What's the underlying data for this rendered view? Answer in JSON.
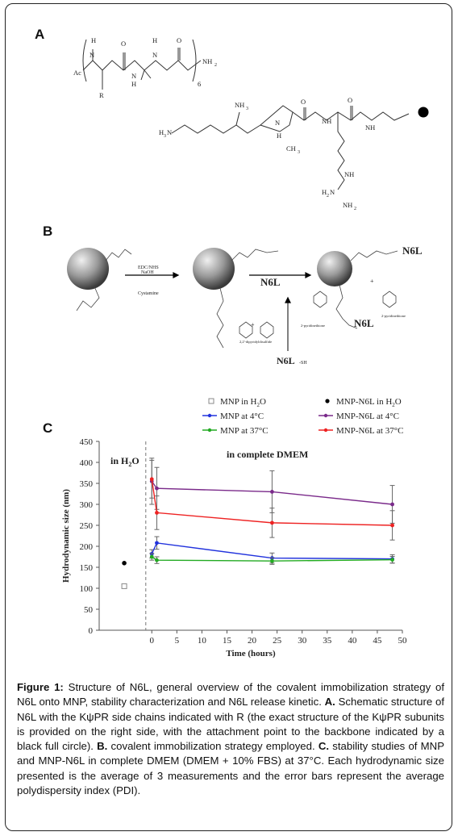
{
  "panels": {
    "a": "A",
    "b": "B",
    "c": "C"
  },
  "panel_a": {
    "sub_ac": "Ac",
    "sub_r": "R",
    "sub_h1": "H",
    "sub_n1": "N",
    "sub_o1": "O",
    "sub_n2": "N",
    "sub_h2": "H",
    "sub_h3": "H",
    "sub_n3": "N",
    "sub_o2": "O",
    "sub_nh2": "NH",
    "sub_6": "6",
    "nh3a": "NH",
    "h3n": "H",
    "nplus": "N",
    "nh_h": "H",
    "ch3": "CH",
    "nh1": "NH",
    "nh2b": "NH",
    "o1": "O",
    "o2": "O",
    "nh3": "NH",
    "h2n": "H",
    "nh2c": "NH"
  },
  "panel_b": {
    "reagent1": "EDC/NHS",
    "reagent2": "NaOH",
    "cysteamine": "Cystamine",
    "n6l_mid": "N6L",
    "n6l_right_top": "N6L",
    "n6l_right_bottom": "N6L",
    "n6l_sh": "N6L",
    "dipyridyl": "2,2'-dipyridyldisulfide",
    "thione": "2-pyridinethione",
    "thione2": "2-pyridinethione",
    "sh_label": "-SH"
  },
  "chart_data": {
    "type": "line",
    "xlabel": "Time (hours)",
    "ylabel": "Hydrodynamic size (nm)",
    "xlim": [
      0,
      50
    ],
    "ylim": [
      0,
      450
    ],
    "xticks": [
      "0",
      "5",
      "10",
      "15",
      "20",
      "25",
      "30",
      "35",
      "40",
      "45",
      "50"
    ],
    "yticks": [
      "0",
      "50",
      "100",
      "150",
      "200",
      "250",
      "300",
      "350",
      "400",
      "450"
    ],
    "annotation_left": "in H",
    "annotation_left_sub": "2",
    "annotation_left_end": "O",
    "annotation_main": "in complete DMEM",
    "legend": [
      {
        "name": "MNP in H2O",
        "label": "MNP in H",
        "sub": "2",
        "end": "O",
        "marker": "square",
        "color": "#888888"
      },
      {
        "name": "MNP-N6L in H2O",
        "label": "MNP-N6L in H",
        "sub": "2",
        "end": "O",
        "marker": "dot",
        "color": "#000000"
      },
      {
        "name": "MNP at 4°C",
        "label": "MNP at 4°C",
        "marker": "line",
        "color": "#2233dd"
      },
      {
        "name": "MNP-N6L at 4°C",
        "label": "MNP-N6L at 4°C",
        "marker": "line",
        "color": "#7a2a8a"
      },
      {
        "name": "MNP at 37°C",
        "label": "MNP at 37°C",
        "marker": "line",
        "color": "#22aa22"
      },
      {
        "name": "MNP-N6L at 37°C",
        "label": "MNP-N6L at 37°C",
        "marker": "line",
        "color": "#ee2222"
      }
    ],
    "points_h2o": [
      {
        "name": "MNP in H2O",
        "x": -5.5,
        "y": 105,
        "color": "#888888",
        "marker": "square"
      },
      {
        "name": "MNP-N6L in H2O",
        "x": -5.5,
        "y": 160,
        "color": "#000000",
        "marker": "dot"
      }
    ],
    "series": [
      {
        "name": "MNP at 4°C",
        "color": "#2233dd",
        "x": [
          0,
          1,
          24,
          48
        ],
        "y": [
          182,
          208,
          172,
          170
        ],
        "err": [
          10,
          15,
          12,
          10
        ]
      },
      {
        "name": "MNP-N6L at 4°C",
        "color": "#7a2a8a",
        "x": [
          0,
          1,
          24,
          48
        ],
        "y": [
          355,
          338,
          330,
          300
        ],
        "err": [
          55,
          50,
          50,
          45
        ]
      },
      {
        "name": "MNP at 37°C",
        "color": "#22aa22",
        "x": [
          0,
          1,
          24,
          48
        ],
        "y": [
          175,
          167,
          165,
          168
        ],
        "err": [
          8,
          8,
          8,
          8
        ]
      },
      {
        "name": "MNP-N6L at 37°C",
        "color": "#ee2222",
        "x": [
          0,
          1,
          24,
          48
        ],
        "y": [
          360,
          280,
          256,
          250
        ],
        "err": [
          45,
          40,
          35,
          35
        ]
      }
    ]
  },
  "caption": {
    "fig_label": "Figure 1:",
    "fig_text": " Structure of N6L, general overview of the covalent immobilization strategy of N6L onto MNP, stability characterization and N6L release kinetic. ",
    "a_label": "A.",
    "a_text": " Schematic structure of N6L with the KψPR side chains indicated with R (the exact structure of the KψPR subunits is provided on the right side, with the attachment point to the backbone indicated by a black full circle). ",
    "b_label": "B.",
    "b_text": " covalent immobilization strategy employed. ",
    "c_label": "C.",
    "c_text": " stability studies of MNP and MNP-N6L in complete DMEM (DMEM + 10% FBS) at 37°C. Each hydrodynamic size presented is the average of 3 measurements and the error bars represent the average polydispersity index (PDI)."
  }
}
